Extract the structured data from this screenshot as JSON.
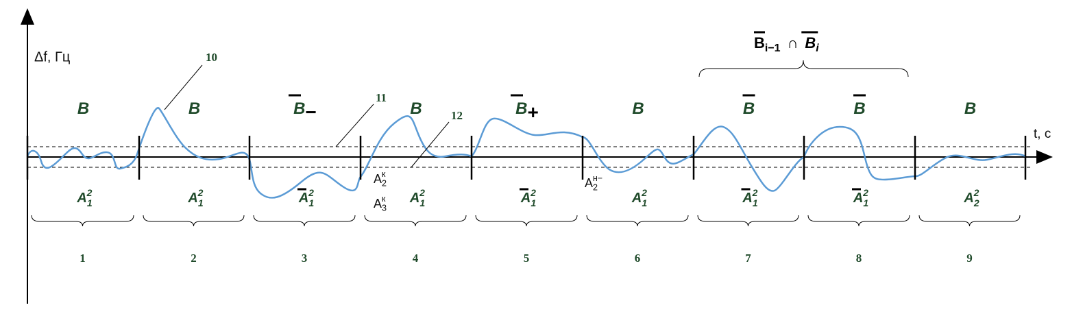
{
  "axis": {
    "y_label": "Δf, Гц",
    "x_label": "t, c"
  },
  "pointers": [
    "10",
    "11",
    "12"
  ],
  "segments": [
    {
      "top": "B",
      "overline": false,
      "bottom": {
        "base": "A",
        "sub": "1",
        "sup": "2",
        "overline": false
      },
      "number": 1
    },
    {
      "top": "B",
      "overline": false,
      "bottom": {
        "base": "A",
        "sub": "1",
        "sup": "2",
        "overline": false
      },
      "number": 2
    },
    {
      "top": "B",
      "overline": true,
      "sign": "−",
      "bottom": {
        "base": "A",
        "sub": "1",
        "sup": "2",
        "overline": true
      },
      "number": 3
    },
    {
      "top": "B",
      "overline": false,
      "bottom": {
        "base": "A",
        "sub": "1",
        "sup": "2",
        "overline": false
      },
      "number": 4
    },
    {
      "top": "B",
      "overline": true,
      "sign": "+",
      "bottom": {
        "base": "A",
        "sub": "1",
        "sup": "2",
        "overline": true
      },
      "number": 5
    },
    {
      "top": "B",
      "overline": false,
      "bottom": {
        "base": "A",
        "sub": "1",
        "sup": "2",
        "overline": false
      },
      "number": 6
    },
    {
      "top": "B",
      "overline": true,
      "bottom": {
        "base": "A",
        "sub": "1",
        "sup": "2",
        "overline": true
      },
      "number": 7
    },
    {
      "top": "B",
      "overline": true,
      "bottom": {
        "base": "A",
        "sub": "1",
        "sup": "2",
        "overline": true
      },
      "number": 8
    },
    {
      "top": "B",
      "overline": false,
      "bottom": {
        "base": "A",
        "sub": "2",
        "sup": "2",
        "overline": false
      },
      "number": 9
    }
  ],
  "marks": [
    {
      "base": "A",
      "sub": "2",
      "sup": "к"
    },
    {
      "base": "A",
      "sub": "3",
      "sup": "к"
    },
    {
      "base": "A",
      "sub": "2",
      "sup": "н−"
    }
  ],
  "brace_label": {
    "left": {
      "base": "B",
      "sub": "i−1"
    },
    "op": "∩",
    "right": {
      "base": "B",
      "sub": "i"
    }
  }
}
